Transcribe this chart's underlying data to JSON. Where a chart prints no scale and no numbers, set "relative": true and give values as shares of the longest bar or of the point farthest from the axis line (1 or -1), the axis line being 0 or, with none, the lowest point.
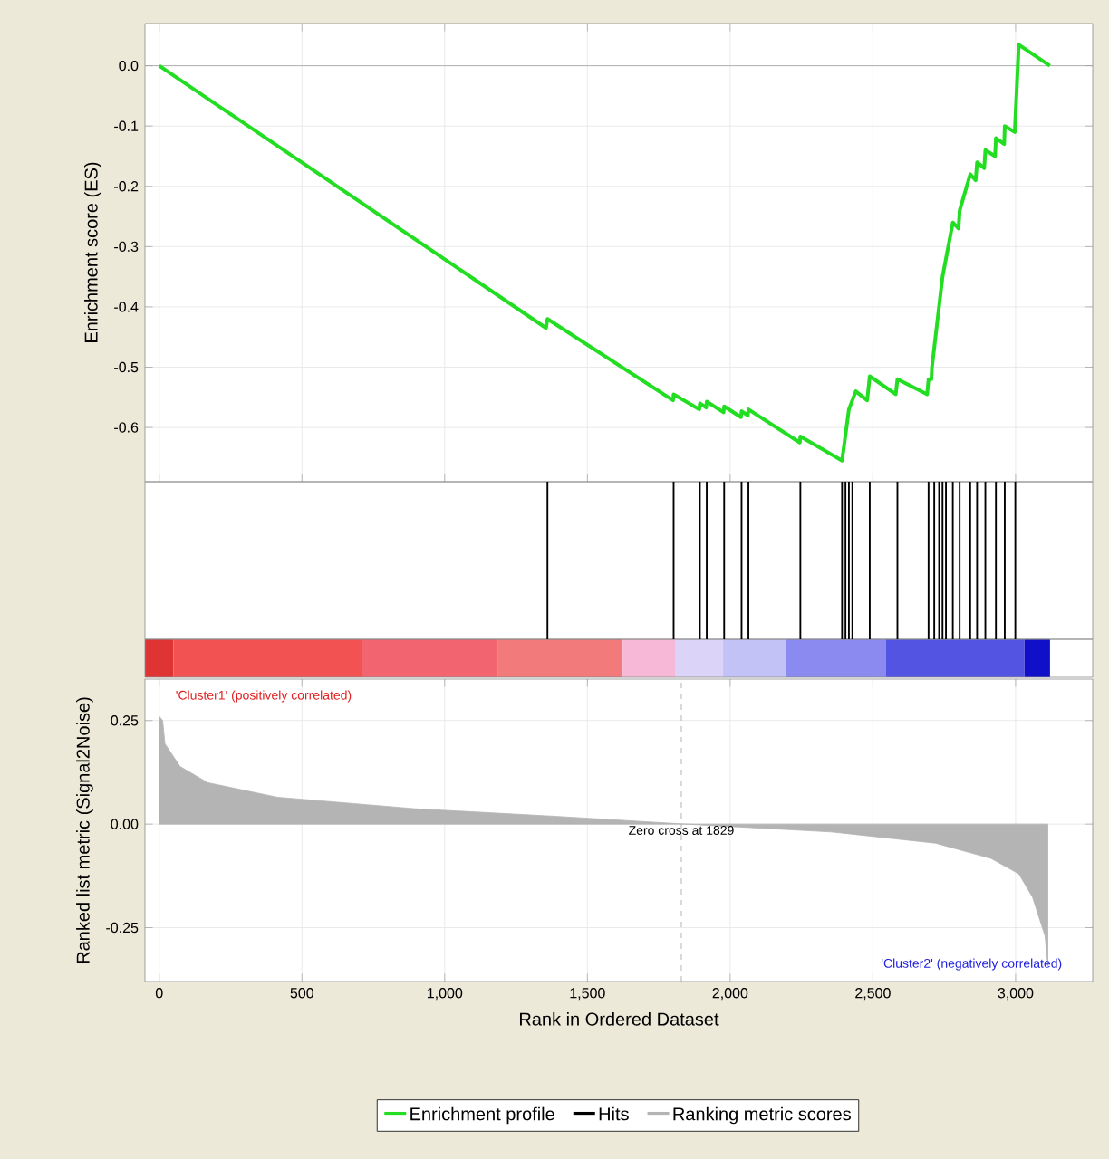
{
  "chart_data": [
    {
      "type": "line",
      "ylabel": "Enrichment score (ES)",
      "xlim": [
        -50,
        3270
      ],
      "ylim": [
        -0.69,
        0.07
      ],
      "grid": true,
      "tick_labels": "y",
      "xticks": [
        0,
        500,
        1000,
        1500,
        2000,
        2500,
        3000
      ],
      "yticks": [
        {
          "value": 0,
          "label": "0.0"
        },
        {
          "value": -0.1,
          "label": "-0.1"
        },
        {
          "value": -0.2,
          "label": "-0.2"
        },
        {
          "value": -0.3,
          "label": "-0.3"
        },
        {
          "value": -0.4,
          "label": "-0.4"
        },
        {
          "value": -0.5,
          "label": "-0.5"
        },
        {
          "value": -0.6,
          "label": "-0.6"
        }
      ],
      "ref_lines": [
        {
          "axis": "y",
          "value": 0,
          "color": "#a0a0a0"
        }
      ],
      "series": [
        {
          "name": "Enrichment profile",
          "color": "#22dd22",
          "x": [
            0,
            1355,
            1360,
            1800,
            1802,
            1892,
            1894,
            1916,
            1918,
            1977,
            1979,
            2038,
            2040,
            2062,
            2064,
            2244,
            2246,
            2392,
            2416,
            2440,
            2480,
            2489,
            2580,
            2586,
            2690,
            2695,
            2705,
            2707,
            2744,
            2780,
            2800,
            2804,
            2841,
            2860,
            2865,
            2890,
            2894,
            2928,
            2931,
            2960,
            2962,
            2997,
            3011,
            3120
          ],
          "values": [
            0,
            -0.435,
            -0.42,
            -0.555,
            -0.545,
            -0.57,
            -0.56,
            -0.567,
            -0.557,
            -0.575,
            -0.565,
            -0.583,
            -0.573,
            -0.58,
            -0.57,
            -0.625,
            -0.615,
            -0.655,
            -0.57,
            -0.54,
            -0.555,
            -0.515,
            -0.545,
            -0.52,
            -0.545,
            -0.52,
            -0.52,
            -0.5,
            -0.35,
            -0.26,
            -0.27,
            -0.24,
            -0.18,
            -0.19,
            -0.16,
            -0.17,
            -0.14,
            -0.15,
            -0.12,
            -0.13,
            -0.1,
            -0.11,
            0.035,
            0
          ]
        }
      ]
    },
    {
      "type": "bar",
      "relative": true,
      "xlim": [
        -50,
        3270
      ],
      "tick_labels": false,
      "series": [
        {
          "name": "Hits",
          "color": "#000000",
          "x": [
            1360,
            1802,
            1894,
            1918,
            1979,
            2040,
            2064,
            2246,
            2392,
            2404,
            2416,
            2428,
            2489,
            2586,
            2695,
            2715,
            2732,
            2744,
            2756,
            2780,
            2804,
            2841,
            2865,
            2894,
            2931,
            2962,
            2999
          ],
          "values": [
            1,
            1,
            1,
            1,
            1,
            1,
            1,
            1,
            1,
            1,
            1,
            1,
            1,
            1,
            1,
            1,
            1,
            1,
            1,
            1,
            1,
            1,
            1,
            1,
            1,
            1,
            1
          ]
        }
      ]
    },
    {
      "type": "area",
      "xlabel": "Rank in Ordered Dataset",
      "ylabel": "Ranked list metric (Signal2Noise)",
      "xlim": [
        -50,
        3270
      ],
      "ylim": [
        -0.38,
        0.35
      ],
      "grid": true,
      "legend": "bottom",
      "xticks": [
        0,
        500,
        {
          "value": 1000,
          "label": "1,000"
        },
        {
          "value": 1500,
          "label": "1,500"
        },
        {
          "value": 2000,
          "label": "2,000"
        },
        {
          "value": 2500,
          "label": "2,500"
        },
        {
          "value": 3000,
          "label": "3,000"
        }
      ],
      "yticks": [
        0.25,
        {
          "value": 0,
          "label": "0.00"
        },
        -0.25
      ],
      "ref_lines": [
        {
          "axis": "x",
          "value": 1829,
          "label": "Zero cross at 1829",
          "color": "#a0a0a0",
          "line_style": "dashed"
        }
      ],
      "annotations": [
        "'Cluster1' (positively correlated)",
        "'Cluster2' (negatively correlated)"
      ],
      "series": [
        {
          "name": "Ranking metric scores",
          "color": "#b4b4b4",
          "x": [
            0,
            12,
            20,
            73,
            170,
            413,
            898,
            1384,
            1845,
            2355,
            2719,
            2914,
            3011,
            3059,
            3103,
            3113
          ],
          "values": [
            0.26,
            0.25,
            0.194,
            0.139,
            0.1,
            0.065,
            0.037,
            0.019,
            0,
            -0.019,
            -0.046,
            -0.083,
            -0.12,
            -0.176,
            -0.27,
            -0.343
          ]
        }
      ]
    }
  ]
}
